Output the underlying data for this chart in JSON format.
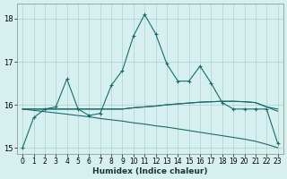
{
  "title": "",
  "xlabel": "Humidex (Indice chaleur)",
  "background_color": "#d6f0f0",
  "grid_color": "#b0d0d0",
  "line_color": "#1a6b6b",
  "xlim": [
    -0.5,
    23.5
  ],
  "ylim": [
    14.85,
    18.35
  ],
  "yticks": [
    15,
    16,
    17,
    18
  ],
  "xticks": [
    0,
    1,
    2,
    3,
    4,
    5,
    6,
    7,
    8,
    9,
    10,
    11,
    12,
    13,
    14,
    15,
    16,
    17,
    18,
    19,
    20,
    21,
    22,
    23
  ],
  "series_main": [
    15.0,
    15.7,
    15.9,
    15.95,
    16.6,
    15.9,
    15.75,
    15.8,
    16.45,
    16.8,
    17.6,
    18.1,
    17.65,
    16.95,
    16.55,
    16.55,
    16.9,
    16.5,
    16.05,
    15.9,
    15.9,
    15.9,
    15.9,
    15.1
  ],
  "series_flat1": [
    15.9,
    15.9,
    15.9,
    15.9,
    15.9,
    15.9,
    15.9,
    15.9,
    15.9,
    15.9,
    15.93,
    15.95,
    15.97,
    16.0,
    16.02,
    16.04,
    16.06,
    16.07,
    16.08,
    16.08,
    16.07,
    16.05,
    15.95,
    15.9
  ],
  "series_flat2": [
    15.9,
    15.9,
    15.9,
    15.9,
    15.9,
    15.9,
    15.9,
    15.9,
    15.9,
    15.9,
    15.93,
    15.95,
    15.97,
    16.0,
    16.02,
    16.04,
    16.06,
    16.07,
    16.08,
    16.08,
    16.07,
    16.05,
    15.95,
    15.85
  ],
  "series_decline": [
    15.9,
    15.87,
    15.84,
    15.81,
    15.78,
    15.75,
    15.72,
    15.68,
    15.65,
    15.62,
    15.58,
    15.55,
    15.51,
    15.48,
    15.44,
    15.4,
    15.36,
    15.32,
    15.28,
    15.24,
    15.2,
    15.15,
    15.08,
    15.0
  ],
  "marker_size": 3.5,
  "line_width": 0.8,
  "tick_fontsize": 5.5,
  "xlabel_fontsize": 6.5
}
